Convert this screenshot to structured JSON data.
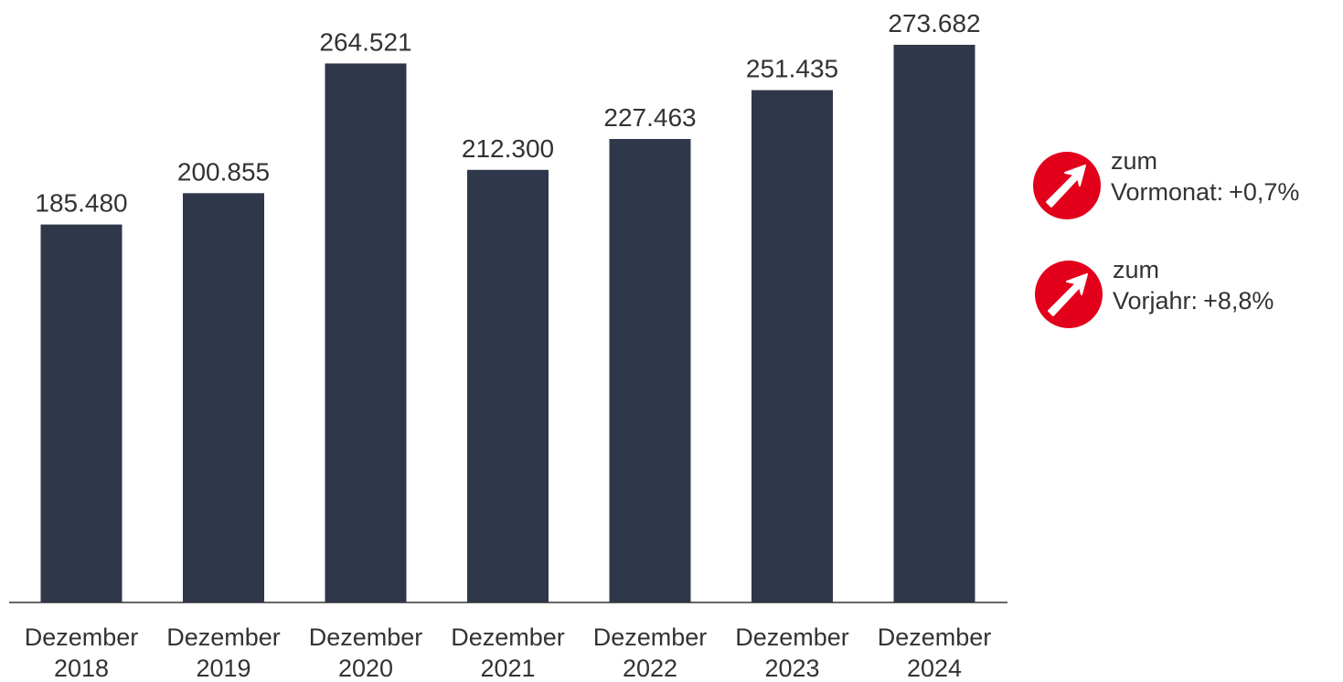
{
  "chart_data": {
    "type": "bar",
    "categories": [
      [
        "Dezember",
        "2018"
      ],
      [
        "Dezember",
        "2019"
      ],
      [
        "Dezember",
        "2020"
      ],
      [
        "Dezember",
        "2021"
      ],
      [
        "Dezember",
        "2022"
      ],
      [
        "Dezember",
        "2023"
      ],
      [
        "Dezember",
        "2024"
      ]
    ],
    "values": [
      185480,
      200855,
      264521,
      212300,
      227463,
      251435,
      273682
    ],
    "value_labels": [
      "185.480",
      "200.855",
      "264.521",
      "212.300",
      "227.463",
      "251.435",
      "273.682"
    ],
    "ylim": [
      0,
      273682
    ],
    "grid": false,
    "legend": "none",
    "colors": {
      "bar": "#2f374b"
    }
  },
  "indicators": [
    {
      "icon": "arrow-up-right-icon",
      "line1": "zum",
      "label": "Vormonat:",
      "value": "+0,7%",
      "color": "#e2001a"
    },
    {
      "icon": "arrow-up-right-icon",
      "line1": "zum",
      "label": "Vorjahr:",
      "value": "+8,8%",
      "color": "#e2001a"
    }
  ]
}
